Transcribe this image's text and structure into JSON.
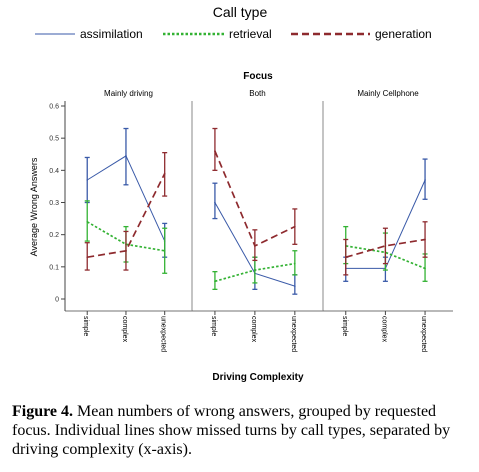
{
  "chart_data": {
    "type": "line",
    "legend_title": "Call type",
    "legend_placement": "top",
    "colors": {
      "assimilation": "#3a5aa8",
      "retrieval": "#33b233",
      "generation": "#8e2a2e",
      "axis": "#444444",
      "panel_border": "#888888"
    },
    "panel_group_title": "Focus",
    "xlabel": "Driving Complexity",
    "ylabel": "Average Wrong Answers",
    "categories": [
      "simple",
      "complex",
      "unexpected"
    ],
    "ylim": [
      0,
      0.6
    ],
    "yticks": [
      "0",
      "0.1",
      "0.2",
      "0.3",
      "0.4",
      "0.5",
      "0.6"
    ],
    "grid": false,
    "series_styles": [
      {
        "name": "assimilation",
        "dash": "solid"
      },
      {
        "name": "retrieval",
        "dash": "dotted"
      },
      {
        "name": "generation",
        "dash": "dashed"
      }
    ],
    "panels": [
      {
        "title": "Mainly driving",
        "series": [
          {
            "name": "assimilation",
            "values": [
              0.37,
              0.445,
              0.18
            ],
            "lower": [
              0.3,
              0.355,
              0.13
            ],
            "upper": [
              0.44,
              0.53,
              0.235
            ]
          },
          {
            "name": "retrieval",
            "values": [
              0.24,
              0.17,
              0.15
            ],
            "lower": [
              0.18,
              0.115,
              0.08
            ],
            "upper": [
              0.305,
              0.225,
              0.22
            ]
          },
          {
            "name": "generation",
            "values": [
              0.13,
              0.15,
              0.39
            ],
            "lower": [
              0.09,
              0.09,
              0.32
            ],
            "upper": [
              0.175,
              0.21,
              0.455
            ]
          }
        ]
      },
      {
        "title": "Both",
        "series": [
          {
            "name": "assimilation",
            "values": [
              0.3,
              0.08,
              0.04
            ],
            "lower": [
              0.25,
              0.03,
              0.015
            ],
            "upper": [
              0.36,
              0.13,
              0.075
            ]
          },
          {
            "name": "retrieval",
            "values": [
              0.055,
              0.09,
              0.11
            ],
            "lower": [
              0.03,
              0.05,
              0.075
            ],
            "upper": [
              0.085,
              0.13,
              0.15
            ]
          },
          {
            "name": "generation",
            "values": [
              0.46,
              0.165,
              0.225
            ],
            "lower": [
              0.4,
              0.12,
              0.17
            ],
            "upper": [
              0.53,
              0.215,
              0.28
            ]
          }
        ]
      },
      {
        "title": "Mainly Cellphone",
        "series": [
          {
            "name": "assimilation",
            "values": [
              0.095,
              0.095,
              0.37
            ],
            "lower": [
              0.055,
              0.055,
              0.31
            ],
            "upper": [
              0.13,
              0.13,
              0.435
            ]
          },
          {
            "name": "retrieval",
            "values": [
              0.165,
              0.145,
              0.095
            ],
            "lower": [
              0.11,
              0.09,
              0.055
            ],
            "upper": [
              0.225,
              0.205,
              0.14
            ]
          },
          {
            "name": "generation",
            "values": [
              0.13,
              0.165,
              0.185
            ],
            "lower": [
              0.075,
              0.11,
              0.13
            ],
            "upper": [
              0.185,
              0.22,
              0.24
            ]
          }
        ]
      }
    ]
  },
  "caption": {
    "label": "Figure 4.",
    "text": " Mean numbers of wrong answers, grouped by requested focus. Individual lines show missed turns by call types, separated by driving complexity (x-axis)."
  }
}
